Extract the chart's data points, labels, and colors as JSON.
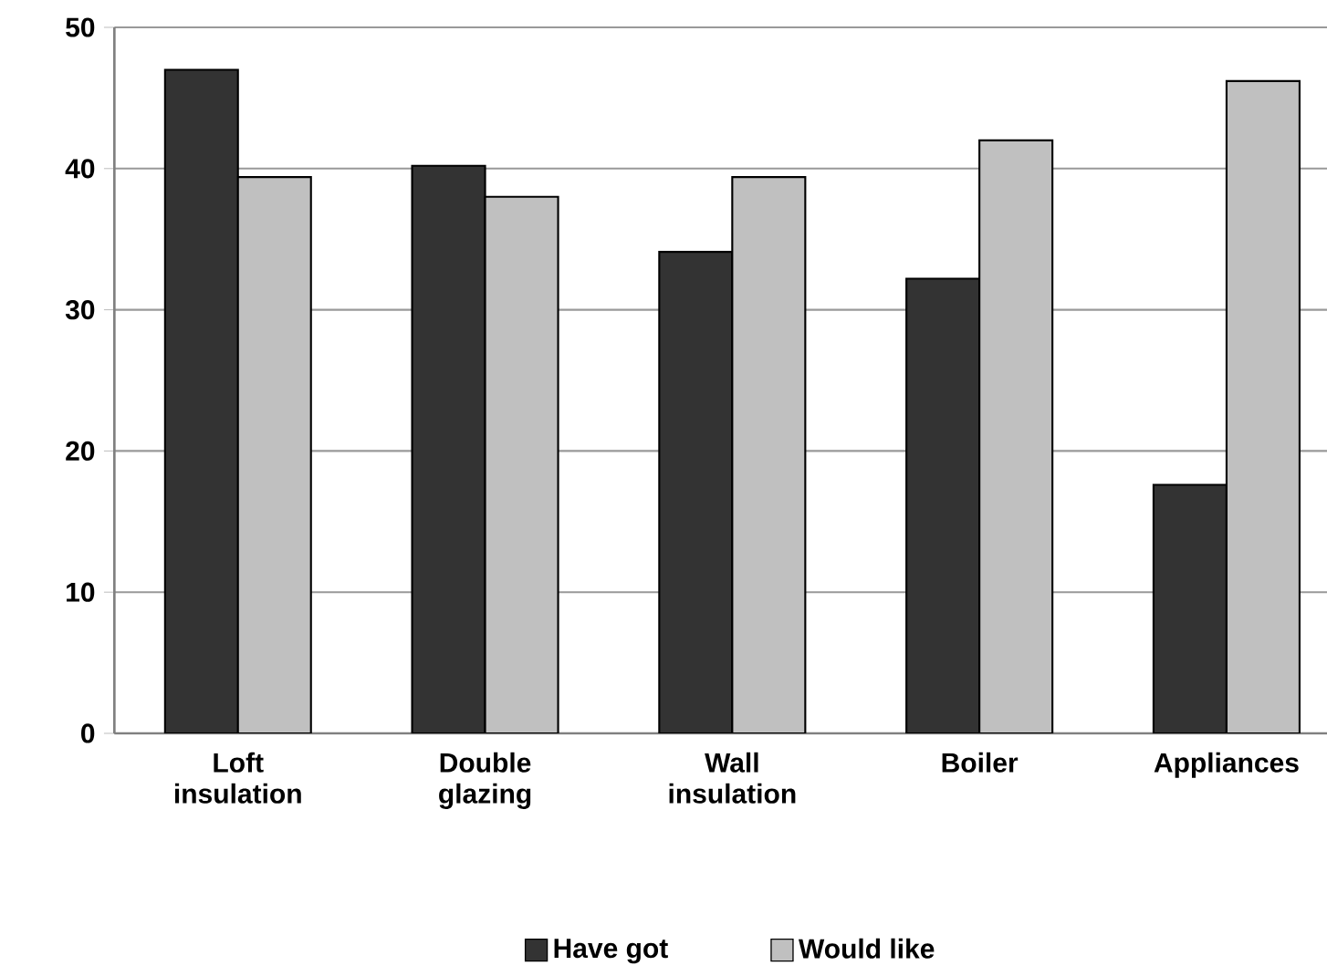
{
  "chart_data": {
    "type": "bar",
    "categories": [
      "Loft insulation",
      "Double glazing",
      "Wall insulation",
      "Boiler",
      "Appliances"
    ],
    "series": [
      {
        "name": "Have got",
        "color": "#333333",
        "values": [
          47,
          40.2,
          34.1,
          32.2,
          17.6
        ]
      },
      {
        "name": "Would like",
        "color": "#c0c0c0",
        "values": [
          39.4,
          38,
          39.4,
          42,
          46.2
        ]
      }
    ],
    "ylim": [
      0,
      50
    ],
    "yticks": [
      0,
      10,
      20,
      30,
      40,
      50
    ],
    "grid": "y",
    "legend": "bottom"
  }
}
